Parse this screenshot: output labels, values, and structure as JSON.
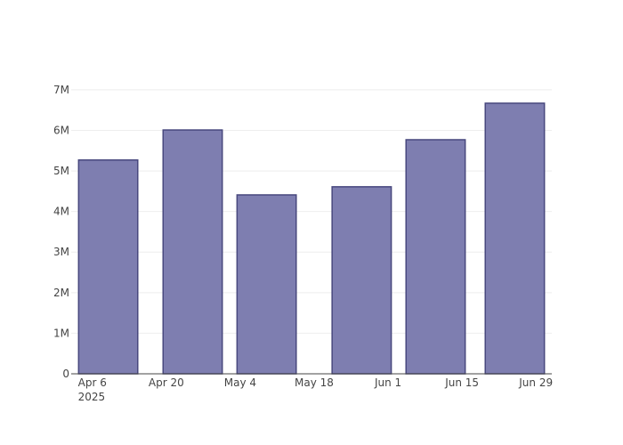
{
  "chart_data": {
    "type": "bar",
    "x": [
      "2025-04-09",
      "2025-04-25",
      "2025-05-09",
      "2025-05-27",
      "2025-06-10",
      "2025-06-25"
    ],
    "values": [
      5270000,
      6010000,
      4410000,
      4610000,
      5770000,
      6670000
    ],
    "color": "#7e7eb0",
    "edge_color": "#48487e",
    "xlim": [
      "2025-04-02",
      "2025-07-02"
    ],
    "xticks": [
      {
        "value": "2025-04-06",
        "label": "Apr 6\n2025"
      },
      {
        "value": "2025-04-20",
        "label": "Apr 20"
      },
      {
        "value": "2025-05-04",
        "label": "May 4"
      },
      {
        "value": "2025-05-18",
        "label": "May 18"
      },
      {
        "value": "2025-06-01",
        "label": "Jun 1"
      },
      {
        "value": "2025-06-15",
        "label": "Jun 15"
      },
      {
        "value": "2025-06-29",
        "label": "Jun 29"
      }
    ],
    "ylim": [
      0,
      7020000
    ],
    "yticks": [
      0,
      {
        "value": 1000000,
        "label": "1M"
      },
      {
        "value": 2000000,
        "label": "2M"
      },
      {
        "value": 3000000,
        "label": "3M"
      },
      {
        "value": 4000000,
        "label": "4M"
      },
      {
        "value": 5000000,
        "label": "5M"
      },
      {
        "value": 6000000,
        "label": "6M"
      },
      {
        "value": 7000000,
        "label": "7M"
      }
    ],
    "grid": true
  }
}
